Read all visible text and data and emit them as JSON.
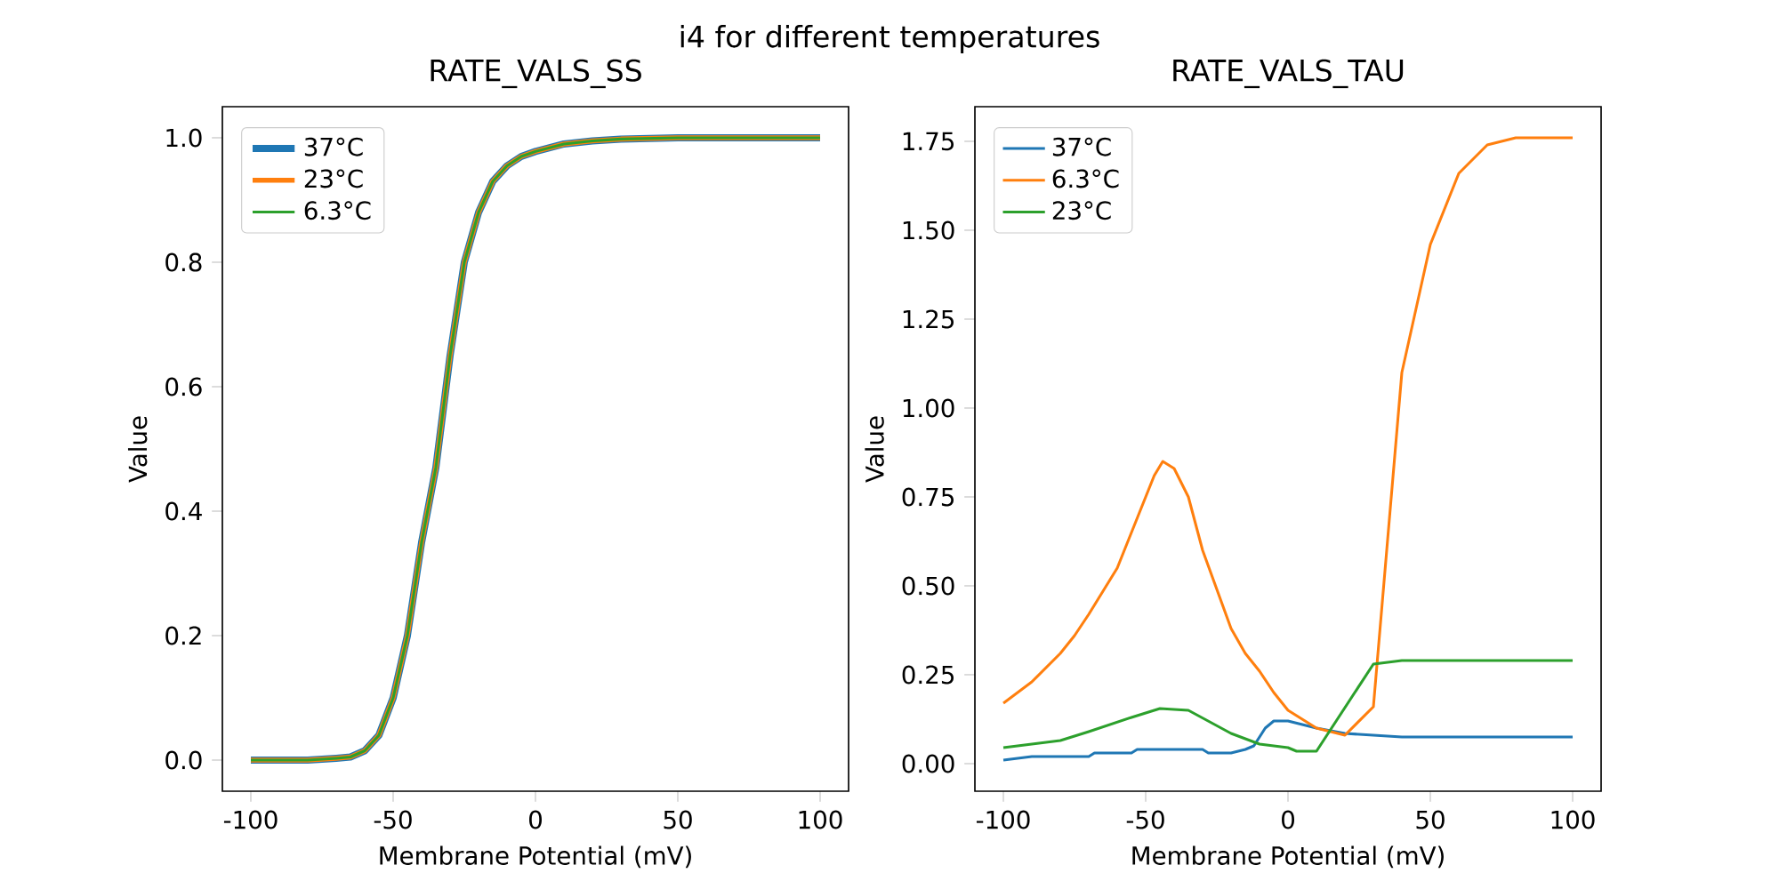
{
  "chart_data": [
    {
      "type": "line",
      "title": "RATE_VALS_SS",
      "xlabel": "Membrane Potential (mV)",
      "ylabel": "Value",
      "annotations": [
        "i4 for different temperatures"
      ],
      "legend": "top left",
      "x": [
        -100,
        -90,
        -80,
        -70,
        -65,
        -60,
        -55,
        -50,
        -45,
        -40,
        -35,
        -30,
        -25,
        -20,
        -15,
        -10,
        -5,
        0,
        10,
        20,
        30,
        50,
        100
      ],
      "xlim": [
        -110,
        110
      ],
      "ylim": [
        -0.05,
        1.05
      ],
      "xticks": [
        -100,
        -50,
        0,
        50,
        100
      ],
      "yticks": [
        {
          "value": 0,
          "label": "0.0"
        },
        {
          "value": 0.2,
          "label": "0.2"
        },
        {
          "value": 0.4,
          "label": "0.4"
        },
        {
          "value": 0.6,
          "label": "0.6"
        },
        {
          "value": 0.8,
          "label": "0.8"
        },
        {
          "value": 1.0,
          "label": "1.0"
        }
      ],
      "series": [
        {
          "name": "37°C",
          "color": "#1f77b4",
          "values": [
            0,
            0,
            0,
            0.003,
            0.005,
            0.015,
            0.04,
            0.1,
            0.2,
            0.35,
            0.47,
            0.65,
            0.8,
            0.88,
            0.93,
            0.955,
            0.97,
            0.978,
            0.99,
            0.995,
            0.998,
            1.0,
            1.0
          ]
        },
        {
          "name": "23°C",
          "color": "#ff7f0e",
          "values": [
            0,
            0,
            0,
            0.003,
            0.005,
            0.015,
            0.04,
            0.1,
            0.2,
            0.35,
            0.47,
            0.65,
            0.8,
            0.88,
            0.93,
            0.955,
            0.97,
            0.978,
            0.99,
            0.995,
            0.998,
            1.0,
            1.0
          ]
        },
        {
          "name": "6.3°C",
          "color": "#2ca02c",
          "values": [
            0,
            0,
            0,
            0.003,
            0.005,
            0.015,
            0.04,
            0.1,
            0.2,
            0.35,
            0.47,
            0.65,
            0.8,
            0.88,
            0.93,
            0.955,
            0.97,
            0.978,
            0.99,
            0.995,
            0.998,
            1.0,
            1.0
          ]
        }
      ]
    },
    {
      "type": "line",
      "title": "RATE_VALS_TAU",
      "xlabel": "Membrane Potential (mV)",
      "ylabel": "Value",
      "legend": "top left",
      "xlim": [
        -110,
        110
      ],
      "ylim": [
        -0.0775,
        1.8475
      ],
      "xticks": [
        -100,
        -50,
        0,
        50,
        100
      ],
      "yticks": [
        {
          "value": 0,
          "label": "0.00"
        },
        {
          "value": 0.25,
          "label": "0.25"
        },
        {
          "value": 0.5,
          "label": "0.50"
        },
        {
          "value": 0.75,
          "label": "0.75"
        },
        {
          "value": 1.0,
          "label": "1.00"
        },
        {
          "value": 1.25,
          "label": "1.25"
        },
        {
          "value": 1.5,
          "label": "1.50"
        },
        {
          "value": 1.75,
          "label": "1.75"
        }
      ],
      "series": [
        {
          "name": "37°C",
          "color": "#1f77b4",
          "x": [
            -100,
            -90,
            -70,
            -68,
            -55,
            -53,
            -30,
            -28,
            -20,
            -15,
            -12,
            -8,
            -5,
            0,
            5,
            10,
            20,
            30,
            40,
            100
          ],
          "values": [
            0.01,
            0.02,
            0.02,
            0.03,
            0.03,
            0.04,
            0.04,
            0.03,
            0.03,
            0.04,
            0.05,
            0.1,
            0.12,
            0.12,
            0.11,
            0.1,
            0.085,
            0.08,
            0.075,
            0.075
          ]
        },
        {
          "name": "6.3°C",
          "color": "#ff7f0e",
          "x": [
            -100,
            -90,
            -80,
            -75,
            -70,
            -60,
            -50,
            -47,
            -44,
            -40,
            -35,
            -30,
            -25,
            -20,
            -15,
            -10,
            -5,
            0,
            10,
            20,
            30,
            40,
            50,
            60,
            70,
            80,
            100
          ],
          "values": [
            0.17,
            0.23,
            0.31,
            0.36,
            0.42,
            0.55,
            0.75,
            0.81,
            0.85,
            0.83,
            0.75,
            0.6,
            0.49,
            0.38,
            0.31,
            0.26,
            0.2,
            0.15,
            0.1,
            0.08,
            0.16,
            1.1,
            1.46,
            1.66,
            1.74,
            1.76,
            1.76
          ]
        },
        {
          "name": "23°C",
          "color": "#2ca02c",
          "x": [
            -100,
            -80,
            -70,
            -55,
            -45,
            -35,
            -20,
            -10,
            0,
            3,
            10,
            30,
            40,
            100
          ],
          "values": [
            0.045,
            0.065,
            0.09,
            0.13,
            0.155,
            0.15,
            0.085,
            0.055,
            0.045,
            0.035,
            0.035,
            0.28,
            0.29,
            0.29
          ]
        }
      ]
    }
  ]
}
